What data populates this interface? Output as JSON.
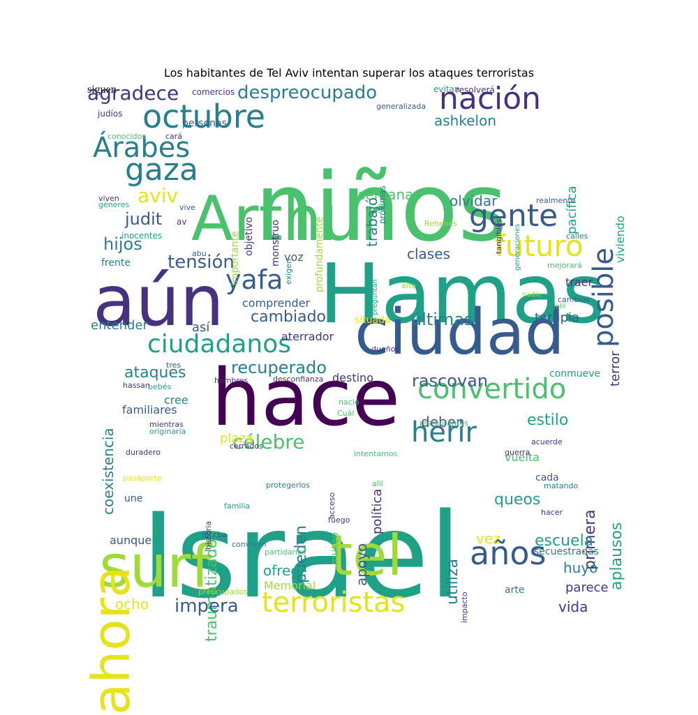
{
  "title": "Los habitantes de Tel Aviv intentan superar los ataques terroristas",
  "colors": {
    "dark-purple": "#440154",
    "indigo": "#46327e",
    "blue": "#365c8d",
    "teal-blue": "#277f8e",
    "teal": "#1fa187",
    "green": "#4ac16d",
    "light-green": "#a0da39",
    "yellow": "#e5e419"
  },
  "words": [
    {
      "text": "Israel",
      "color": "#1fa187"
    },
    {
      "text": "niños",
      "color": "#4ac16d"
    },
    {
      "text": "Hamas",
      "color": "#1fa187"
    },
    {
      "text": "hace",
      "color": "#440154"
    },
    {
      "text": "Arthur",
      "color": "#4ac16d"
    },
    {
      "text": "aún",
      "color": "#46327e"
    },
    {
      "text": "ciudad",
      "color": "#365c8d"
    },
    {
      "text": "surf",
      "color": "#a0da39"
    },
    {
      "text": "tel",
      "color": "#a0da39"
    },
    {
      "text": "ahora",
      "color": "#e5e419"
    },
    {
      "text": "octubre",
      "color": "#277f8e"
    },
    {
      "text": "nación",
      "color": "#46327e"
    },
    {
      "text": "Árabes",
      "color": "#277f8e"
    },
    {
      "text": "gaza",
      "color": "#277f8e"
    },
    {
      "text": "gente",
      "color": "#365c8d"
    },
    {
      "text": "posible",
      "color": "#365c8d"
    },
    {
      "text": "futuro",
      "color": "#e5e419"
    },
    {
      "text": "ciudadanos",
      "color": "#1fa187"
    },
    {
      "text": "convertido",
      "color": "#4ac16d"
    },
    {
      "text": "terroristas",
      "color": "#e5e419"
    },
    {
      "text": "herir",
      "color": "#277f8e"
    },
    {
      "text": "años",
      "color": "#365c8d"
    },
    {
      "text": "yafa",
      "color": "#365c8d"
    },
    {
      "text": "tensión",
      "color": "#365c8d"
    },
    {
      "text": "agradece",
      "color": "#46327e"
    },
    {
      "text": "despreocupado",
      "color": "#277f8e"
    },
    {
      "text": "ashkelon",
      "color": "#277f8e"
    },
    {
      "text": "aviv",
      "color": "#e5e419"
    },
    {
      "text": "judit",
      "color": "#365c8d"
    },
    {
      "text": "hijos",
      "color": "#277f8e"
    },
    {
      "text": "semanas",
      "color": "#4ac16d"
    },
    {
      "text": "olvidar",
      "color": "#277f8e"
    },
    {
      "text": "clases",
      "color": "#365c8d"
    },
    {
      "text": "trabajó",
      "color": "#277f8e"
    },
    {
      "text": "pacífica",
      "color": "#1fa187"
    },
    {
      "text": "viviendo",
      "color": "#1fa187"
    },
    {
      "text": "cambiado",
      "color": "#365c8d"
    },
    {
      "text": "últimas",
      "color": "#277f8e"
    },
    {
      "text": "recuperado",
      "color": "#277f8e"
    },
    {
      "text": "célebre",
      "color": "#4ac16d"
    },
    {
      "text": "ataques",
      "color": "#277f8e"
    },
    {
      "text": "rascovan",
      "color": "#365c8d"
    },
    {
      "text": "estilo",
      "color": "#1fa187"
    },
    {
      "text": "deben",
      "color": "#365c8d"
    },
    {
      "text": "aplausos",
      "color": "#1fa187"
    },
    {
      "text": "primera",
      "color": "#46327e"
    },
    {
      "text": "queos",
      "color": "#1fa187"
    },
    {
      "text": "traumatizados",
      "color": "#4ac16d"
    },
    {
      "text": "coexistencia",
      "color": "#277f8e"
    },
    {
      "text": "pueden",
      "color": "#277f8e"
    },
    {
      "text": "apoyo",
      "color": "#365c8d"
    },
    {
      "text": "utiliza",
      "color": "#277f8e"
    },
    {
      "text": "escuela",
      "color": "#1fa187"
    },
    {
      "text": "vez",
      "color": "#e5e419"
    },
    {
      "text": "huyó",
      "color": "#277f8e"
    },
    {
      "text": "ofrece",
      "color": "#1fa187"
    },
    {
      "text": "impera",
      "color": "#365c8d"
    },
    {
      "text": "ocho",
      "color": "#e5e419"
    },
    {
      "text": "vida",
      "color": "#46327e"
    },
    {
      "text": "parece",
      "color": "#46327e"
    },
    {
      "text": "terror",
      "color": "#46327e"
    },
    {
      "text": "terapia",
      "color": "#365c8d"
    },
    {
      "text": "entender",
      "color": "#277f8e"
    },
    {
      "text": "así",
      "color": "#365c8d"
    },
    {
      "text": "comprender",
      "color": "#365c8d"
    },
    {
      "text": "aterrador",
      "color": "#46327e"
    },
    {
      "text": "situada",
      "color": "#e5e419"
    },
    {
      "text": "voz",
      "color": "#365c8d"
    },
    {
      "text": "traer",
      "color": "#46327e"
    },
    {
      "text": "frente",
      "color": "#277f8e"
    },
    {
      "text": "cree",
      "color": "#277f8e"
    },
    {
      "text": "familiares",
      "color": "#365c8d"
    },
    {
      "text": "aunque",
      "color": "#365c8d"
    },
    {
      "text": "plaza",
      "color": "#e5e419"
    },
    {
      "text": "destino",
      "color": "#46327e"
    },
    {
      "text": "conmueve",
      "color": "#1fa187"
    },
    {
      "text": "secuestradas",
      "color": "#277f8e"
    },
    {
      "text": "vuelta",
      "color": "#4ac16d"
    },
    {
      "text": "cada",
      "color": "#365c8d"
    },
    {
      "text": "une",
      "color": "#365c8d"
    },
    {
      "text": "Memorial",
      "color": "#a0da39"
    },
    {
      "text": "arte",
      "color": "#277f8e"
    },
    {
      "text": "política",
      "color": "#46327e"
    },
    {
      "text": "museo",
      "color": "#4ac16d"
    },
    {
      "text": "profundamente",
      "color": "#a0da39"
    },
    {
      "text": "objetivo",
      "color": "#46327e"
    },
    {
      "text": "importante",
      "color": "#a0da39"
    },
    {
      "text": "monstruo",
      "color": "#46327e"
    },
    {
      "text": "próximas",
      "color": "#277f8e"
    },
    {
      "text": "tangibles",
      "color": "#46327e"
    },
    {
      "text": "generaciones",
      "color": "#1fa187"
    },
    {
      "text": "personas",
      "color": "#365c8d"
    },
    {
      "text": "comercios",
      "color": "#46327e"
    },
    {
      "text": "evitan",
      "color": "#1fa187"
    },
    {
      "text": "resolverá",
      "color": "#46327e"
    },
    {
      "text": "generalizada",
      "color": "#365c8d"
    },
    {
      "text": "judíos",
      "color": "#46327e"
    },
    {
      "text": "conocidos",
      "color": "#4ac16d"
    },
    {
      "text": "cará",
      "color": "#46327e"
    },
    {
      "text": "viven",
      "color": "#46327e"
    },
    {
      "text": "géneres",
      "color": "#1fa187"
    },
    {
      "text": "vive",
      "color": "#365c8d"
    },
    {
      "text": "realmente",
      "color": "#365c8d"
    },
    {
      "text": "Rehenes",
      "color": "#a0da39"
    },
    {
      "text": "calles",
      "color": "#277f8e"
    },
    {
      "text": "inocentes",
      "color": "#1fa187"
    },
    {
      "text": "abu",
      "color": "#365c8d"
    },
    {
      "text": "exigen",
      "color": "#277f8e"
    },
    {
      "text": "av",
      "color": "#46327e"
    },
    {
      "text": "preguntan",
      "color": "#1fa187"
    },
    {
      "text": "alto",
      "color": "#a0da39"
    },
    {
      "text": "mejorará",
      "color": "#4ac16d"
    },
    {
      "text": "nadie",
      "color": "#a0da39"
    },
    {
      "text": "cambios",
      "color": "#365c8d"
    },
    {
      "text": "Jalil",
      "color": "#4ac16d"
    },
    {
      "text": "dueños",
      "color": "#46327e"
    },
    {
      "text": "tres",
      "color": "#365c8d"
    },
    {
      "text": "bebés",
      "color": "#1fa187"
    },
    {
      "text": "hassan",
      "color": "#46327e"
    },
    {
      "text": "hombres",
      "color": "#46327e"
    },
    {
      "text": "desconfianza",
      "color": "#46327e"
    },
    {
      "text": "nació",
      "color": "#4ac16d"
    },
    {
      "text": "Cuál",
      "color": "#4ac16d"
    },
    {
      "text": "mientras",
      "color": "#46327e"
    },
    {
      "text": "originaria",
      "color": "#1fa187"
    },
    {
      "text": "restaurantes",
      "color": "#4ac16d"
    },
    {
      "text": "acuerde",
      "color": "#46327e"
    },
    {
      "text": "duradero",
      "color": "#46327e"
    },
    {
      "text": "cerrados",
      "color": "#46327e"
    },
    {
      "text": "intentamos",
      "color": "#4ac16d"
    },
    {
      "text": "guerra",
      "color": "#46327e"
    },
    {
      "text": "pasaporte",
      "color": "#e5e419"
    },
    {
      "text": "historia",
      "color": "#46327e"
    },
    {
      "text": "protegerlos",
      "color": "#277f8e"
    },
    {
      "text": "allí",
      "color": "#4ac16d"
    },
    {
      "text": "matando",
      "color": "#277f8e"
    },
    {
      "text": "familia",
      "color": "#1fa187"
    },
    {
      "text": "fuego",
      "color": "#46327e"
    },
    {
      "text": "hacer",
      "color": "#46327e"
    },
    {
      "text": "mutua",
      "color": "#365c8d"
    },
    {
      "text": "acceso",
      "color": "#46327e"
    },
    {
      "text": "conviven",
      "color": "#277f8e"
    },
    {
      "text": "partidarios",
      "color": "#4ac16d"
    },
    {
      "text": "impacto",
      "color": "#46327e"
    },
    {
      "text": "preocupados",
      "color": "#a0da39"
    },
    {
      "text": "siguen",
      "color": "#365c8d"
    }
  ]
}
